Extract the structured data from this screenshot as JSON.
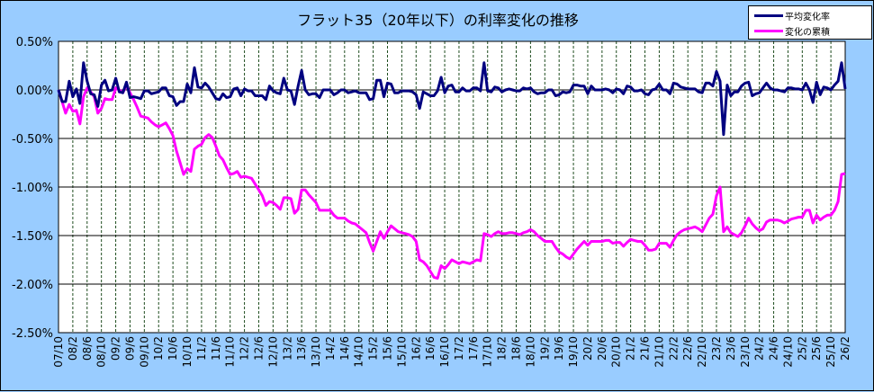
{
  "chart_data": {
    "type": "line",
    "title": "フラット35（20年以下）の利率変化の推移",
    "ylim": [
      -2.5,
      0.5
    ],
    "y_ticks": [
      "0.50%",
      "0.00%",
      "-0.50%",
      "-1.00%",
      "-1.50%",
      "-2.00%",
      "-2.50%"
    ],
    "y_tick_values": [
      0.5,
      0,
      -0.5,
      -1.0,
      -1.5,
      -2.0,
      -2.5
    ],
    "x_range": [
      "07/10",
      "26/2"
    ],
    "x_interval": "monthly",
    "x_ticks": [
      "07/10",
      "08/2",
      "08/6",
      "08/10",
      "09/2",
      "09/6",
      "09/10",
      "10/2",
      "10/6",
      "10/10",
      "11/2",
      "11/6",
      "11/10",
      "12/2",
      "12/6",
      "12/10",
      "13/2",
      "13/6",
      "13/10",
      "14/2",
      "14/6",
      "14/10",
      "15/2",
      "15/6",
      "15/10",
      "16/2",
      "16/6",
      "16/10",
      "17/2",
      "17/6",
      "17/10",
      "18/2",
      "18/6",
      "18/10",
      "19/2",
      "19/6",
      "19/10",
      "20/2",
      "20/6",
      "20/10",
      "21/2",
      "21/6",
      "21/10",
      "22/2",
      "22/6",
      "22/10",
      "23/2",
      "23/6",
      "23/10",
      "24/2",
      "24/6",
      "24/10",
      "25/2",
      "25/6",
      "25/10",
      "26/2"
    ],
    "grid": {
      "horizontal": true,
      "vertical": true
    },
    "legend_position": "top-right",
    "series": [
      {
        "name": "平均変化率",
        "color": "#000080",
        "values": [
          0,
          -0.12,
          -0.12,
          0.09,
          -0.07,
          0.01,
          -0.14,
          0.28,
          0.09,
          -0.04,
          -0.05,
          -0.17,
          0.05,
          0.1,
          -0.01,
          0.0,
          0.12,
          -0.02,
          -0.03,
          0.08,
          -0.08,
          -0.07,
          -0.08,
          -0.09,
          -0.01,
          -0.01,
          -0.04,
          -0.03,
          -0.02,
          0.02,
          0.02,
          -0.06,
          -0.07,
          -0.16,
          -0.12,
          -0.12,
          0.06,
          -0.03,
          0.23,
          0.03,
          0.02,
          0.07,
          0.03,
          -0.03,
          -0.09,
          -0.1,
          -0.04,
          -0.08,
          -0.07,
          0.01,
          0.02,
          -0.06,
          0.01,
          -0.01,
          -0.01,
          -0.06,
          -0.06,
          -0.06,
          -0.1,
          0.04,
          -0.01,
          -0.03,
          -0.04,
          0.12,
          0.0,
          -0.01,
          -0.15,
          0.04,
          0.2,
          0.0,
          -0.05,
          -0.04,
          -0.04,
          -0.08,
          0,
          0,
          0,
          -0.05,
          -0.03,
          0,
          0,
          -0.03,
          -0.02,
          -0.01,
          -0.03,
          -0.03,
          -0.03,
          -0.1,
          -0.09,
          0.1,
          0.1,
          -0.07,
          0.07,
          0.06,
          -0.03,
          -0.03,
          -0.01,
          -0.01,
          -0.01,
          -0.02,
          -0.05,
          -0.19,
          -0.02,
          -0.04,
          -0.06,
          -0.06,
          -0.01,
          0.13,
          -0.03,
          0.04,
          0.05,
          -0.02,
          -0.02,
          0.02,
          -0.01,
          -0.01,
          0.02,
          0.02,
          -0.01,
          0.28,
          -0.01,
          -0.02,
          0.03,
          0.02,
          -0.02,
          0,
          0.01,
          0,
          -0.01,
          -0.01,
          0.02,
          0.01,
          0.02,
          -0.02,
          -0.04,
          -0.03,
          -0.03,
          0,
          0,
          -0.06,
          -0.05,
          -0.02,
          -0.03,
          -0.02,
          0.05,
          0.05,
          0.04,
          0.04,
          -0.04,
          0.04,
          0,
          0,
          0,
          0.01,
          0,
          -0.03,
          0.01,
          0,
          -0.04,
          0.04,
          0.03,
          -0.01,
          -0.01,
          0,
          -0.04,
          -0.05,
          0,
          0.01,
          0.06,
          0,
          0,
          -0.04,
          0.07,
          0.06,
          0.03,
          0.02,
          0.01,
          0.01,
          0.01,
          -0.02,
          -0.03,
          0.07,
          0.07,
          0.04,
          0.19,
          0.09,
          -0.46,
          0.05,
          -0.06,
          -0.02,
          -0.02,
          0.04,
          0.07,
          0.08,
          -0.06,
          -0.04,
          -0.03,
          0.02,
          0.07,
          0.02,
          0,
          0,
          -0.01,
          -0.02,
          0.02,
          0.02,
          0.01,
          0.01,
          0,
          0.07,
          0,
          -0.13,
          0.08,
          -0.05,
          0.03,
          0.02,
          0,
          0.05,
          0.09,
          0.28,
          0.01
        ]
      },
      {
        "name": "変化の累積",
        "color": "#ff00ff",
        "values": [
          0,
          -0.12,
          -0.24,
          -0.15,
          -0.22,
          -0.21,
          -0.35,
          -0.07,
          0.02,
          -0.02,
          -0.07,
          -0.24,
          -0.19,
          -0.09,
          -0.1,
          -0.1,
          0.02,
          0.0,
          -0.03,
          0.05,
          -0.03,
          -0.1,
          -0.18,
          -0.27,
          -0.28,
          -0.29,
          -0.33,
          -0.36,
          -0.38,
          -0.36,
          -0.34,
          -0.4,
          -0.47,
          -0.63,
          -0.75,
          -0.87,
          -0.81,
          -0.84,
          -0.61,
          -0.58,
          -0.56,
          -0.49,
          -0.46,
          -0.49,
          -0.58,
          -0.68,
          -0.72,
          -0.8,
          -0.87,
          -0.86,
          -0.84,
          -0.9,
          -0.89,
          -0.9,
          -0.91,
          -0.97,
          -1.03,
          -1.09,
          -1.19,
          -1.15,
          -1.16,
          -1.19,
          -1.23,
          -1.11,
          -1.11,
          -1.12,
          -1.27,
          -1.23,
          -1.03,
          -1.03,
          -1.08,
          -1.12,
          -1.16,
          -1.24,
          -1.24,
          -1.24,
          -1.24,
          -1.29,
          -1.32,
          -1.32,
          -1.32,
          -1.35,
          -1.37,
          -1.38,
          -1.41,
          -1.44,
          -1.47,
          -1.57,
          -1.66,
          -1.56,
          -1.46,
          -1.53,
          -1.46,
          -1.4,
          -1.43,
          -1.46,
          -1.47,
          -1.48,
          -1.49,
          -1.51,
          -1.56,
          -1.75,
          -1.77,
          -1.81,
          -1.87,
          -1.93,
          -1.94,
          -1.81,
          -1.84,
          -1.8,
          -1.75,
          -1.77,
          -1.79,
          -1.77,
          -1.78,
          -1.79,
          -1.77,
          -1.75,
          -1.76,
          -1.48,
          -1.49,
          -1.51,
          -1.48,
          -1.46,
          -1.48,
          -1.48,
          -1.47,
          -1.47,
          -1.48,
          -1.49,
          -1.47,
          -1.46,
          -1.44,
          -1.46,
          -1.5,
          -1.53,
          -1.56,
          -1.56,
          -1.56,
          -1.62,
          -1.67,
          -1.69,
          -1.72,
          -1.74,
          -1.69,
          -1.64,
          -1.6,
          -1.56,
          -1.6,
          -1.56,
          -1.56,
          -1.56,
          -1.56,
          -1.55,
          -1.55,
          -1.58,
          -1.57,
          -1.57,
          -1.61,
          -1.57,
          -1.54,
          -1.55,
          -1.56,
          -1.56,
          -1.6,
          -1.65,
          -1.65,
          -1.64,
          -1.58,
          -1.58,
          -1.58,
          -1.62,
          -1.55,
          -1.49,
          -1.46,
          -1.44,
          -1.43,
          -1.42,
          -1.41,
          -1.43,
          -1.46,
          -1.39,
          -1.32,
          -1.28,
          -1.09,
          -1.0,
          -1.46,
          -1.41,
          -1.47,
          -1.49,
          -1.51,
          -1.47,
          -1.4,
          -1.32,
          -1.38,
          -1.42,
          -1.45,
          -1.43,
          -1.36,
          -1.34,
          -1.34,
          -1.34,
          -1.35,
          -1.37,
          -1.35,
          -1.33,
          -1.32,
          -1.31,
          -1.31,
          -1.24,
          -1.24,
          -1.37,
          -1.29,
          -1.34,
          -1.31,
          -1.29,
          -1.29,
          -1.24,
          -1.15,
          -0.87,
          -0.86
        ]
      }
    ]
  },
  "legend": {
    "items": [
      "平均変化率",
      "変化の累積"
    ]
  },
  "colors": {
    "background": "#99ccff",
    "plot": "#ffffff",
    "vgrid": "#1f4d1f"
  }
}
